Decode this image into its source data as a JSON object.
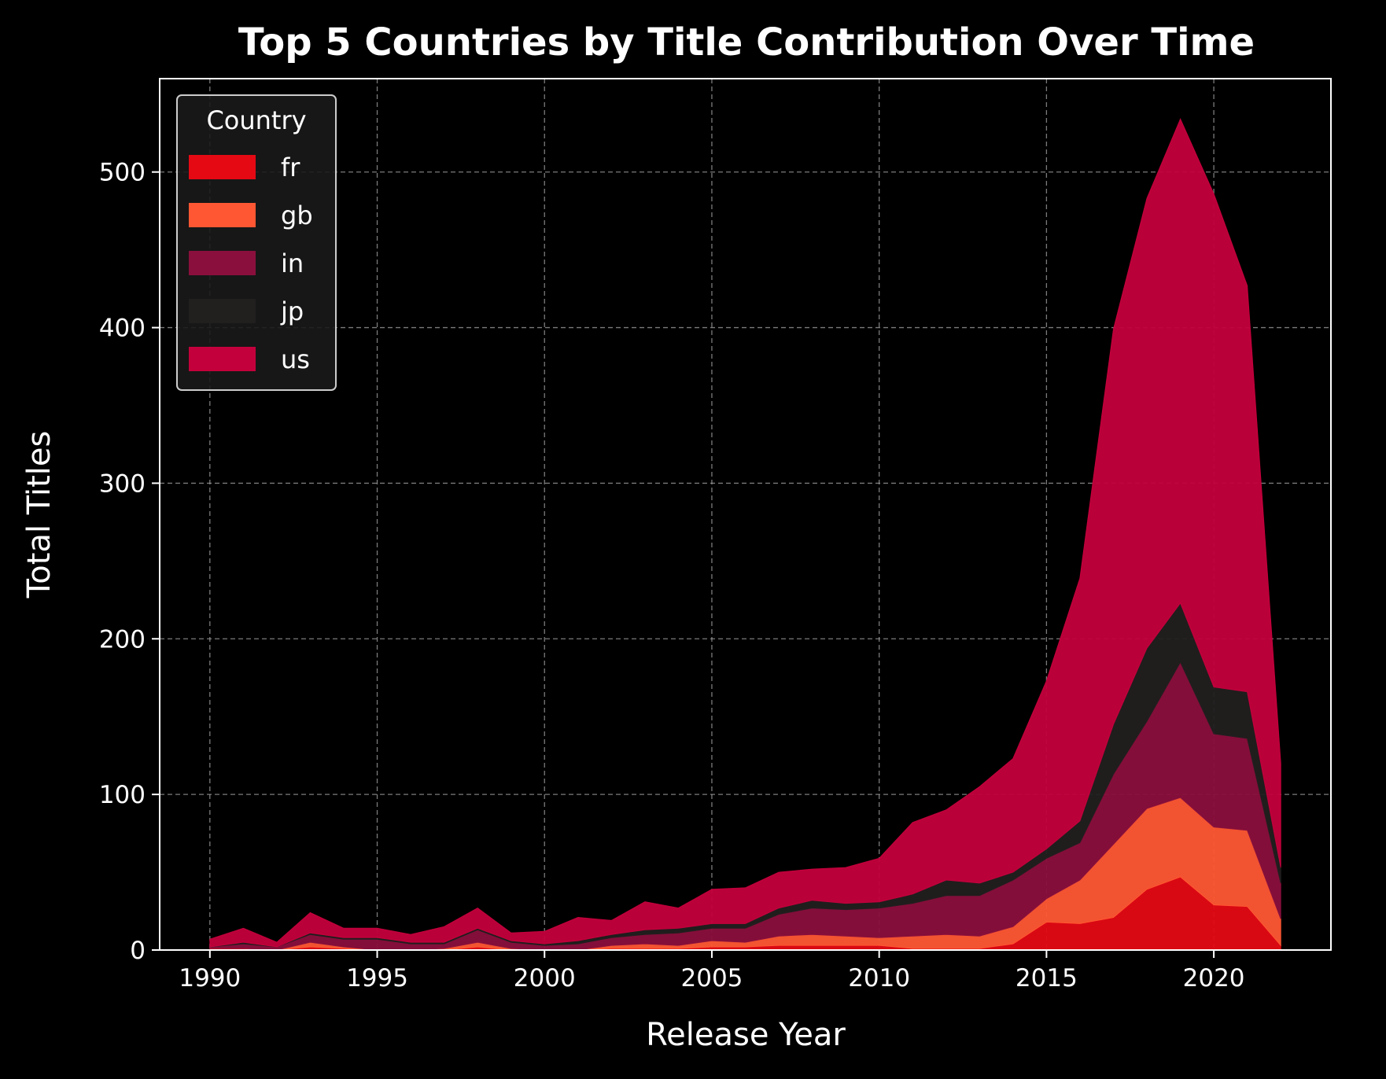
{
  "chart_data": {
    "type": "area",
    "stacked": true,
    "title": "Top 5 Countries by Title Contribution Over Time",
    "xlabel": "Release Year",
    "ylabel": "Total Titles",
    "xlim": [
      1988.5,
      2023.5
    ],
    "ylim": [
      0,
      560
    ],
    "xticks": [
      1990,
      1995,
      2000,
      2005,
      2010,
      2015,
      2020
    ],
    "yticks": [
      0,
      100,
      200,
      300,
      400,
      500
    ],
    "grid": true,
    "background": "#000000",
    "legend": {
      "title": "Country",
      "position": "top-left"
    },
    "x": [
      1990,
      1991,
      1992,
      1993,
      1994,
      1995,
      1996,
      1997,
      1998,
      1999,
      2000,
      2001,
      2002,
      2003,
      2004,
      2005,
      2006,
      2007,
      2008,
      2009,
      2010,
      2011,
      2012,
      2013,
      2014,
      2015,
      2016,
      2017,
      2018,
      2019,
      2020,
      2021,
      2022
    ],
    "series": [
      {
        "name": "fr",
        "color": "#e50914",
        "values": [
          1,
          1,
          0,
          2,
          1,
          0,
          0,
          0,
          2,
          0,
          0,
          0,
          1,
          1,
          1,
          2,
          2,
          3,
          3,
          3,
          3,
          1,
          1,
          1,
          4,
          18,
          17,
          21,
          39,
          47,
          29,
          28,
          3
        ]
      },
      {
        "name": "gb",
        "color": "#ff5733",
        "values": [
          0,
          0,
          0,
          3,
          1,
          0,
          0,
          1,
          3,
          1,
          0,
          0,
          2,
          3,
          2,
          4,
          3,
          6,
          7,
          6,
          5,
          8,
          9,
          8,
          11,
          15,
          28,
          47,
          52,
          51,
          50,
          49,
          17
        ]
      },
      {
        "name": "in",
        "color": "#8a0f3c",
        "values": [
          1,
          3,
          2,
          5,
          5,
          7,
          4,
          3,
          8,
          4,
          3,
          4,
          5,
          6,
          8,
          8,
          9,
          14,
          17,
          17,
          19,
          21,
          25,
          26,
          30,
          26,
          24,
          45,
          56,
          87,
          60,
          59,
          23
        ]
      },
      {
        "name": "jp",
        "color": "#221f1f",
        "values": [
          0,
          1,
          0,
          1,
          1,
          1,
          1,
          1,
          1,
          1,
          1,
          2,
          2,
          3,
          3,
          3,
          3,
          4,
          5,
          4,
          4,
          6,
          10,
          8,
          5,
          6,
          14,
          32,
          47,
          38,
          30,
          30,
          10
        ]
      },
      {
        "name": "us",
        "color": "#c4003c",
        "values": [
          5,
          9,
          3,
          13,
          6,
          6,
          5,
          10,
          13,
          5,
          8,
          15,
          9,
          18,
          13,
          22,
          23,
          23,
          20,
          23,
          28,
          46,
          45,
          62,
          73,
          108,
          156,
          254,
          289,
          311,
          317,
          261,
          67
        ]
      }
    ]
  }
}
